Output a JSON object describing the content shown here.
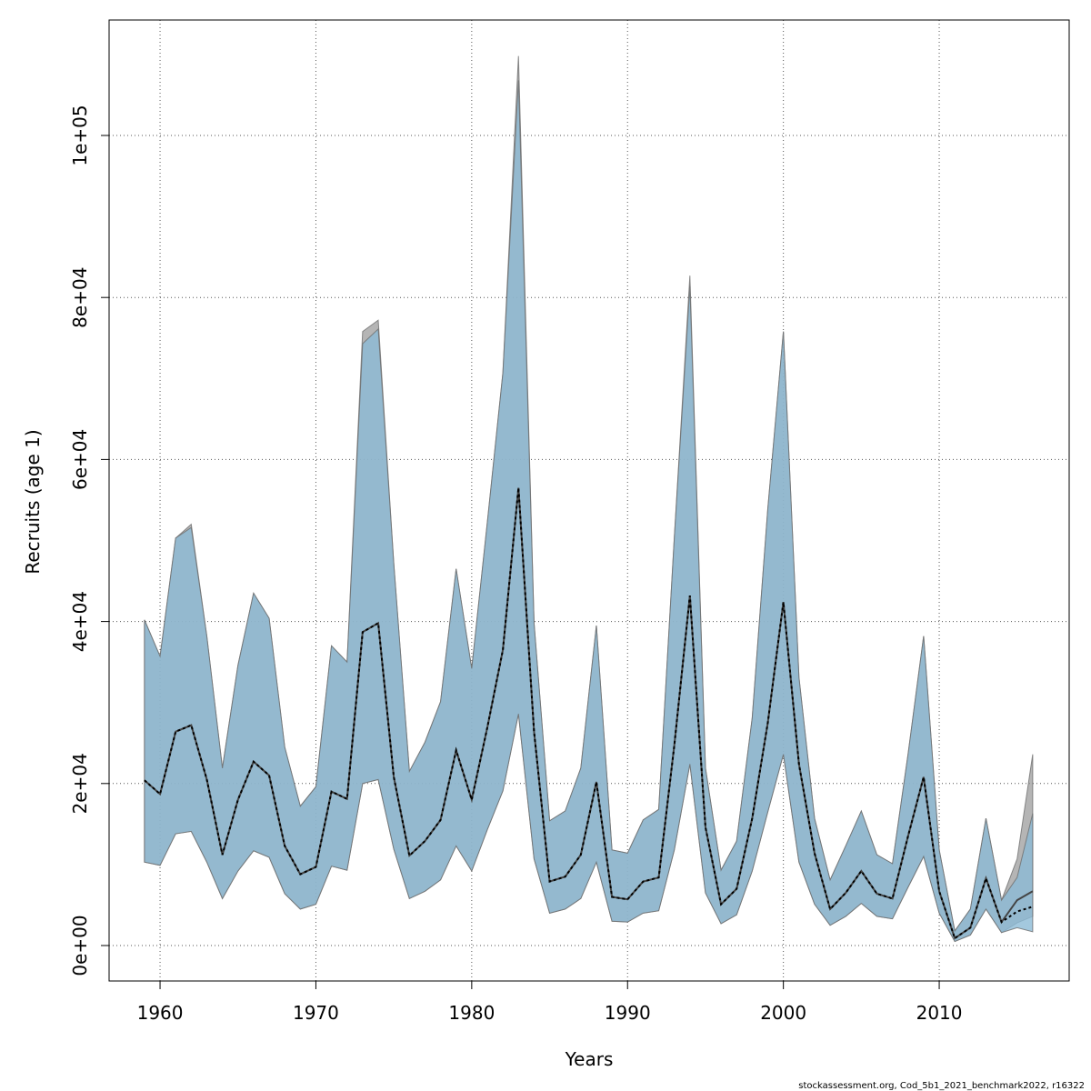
{
  "chart_data": {
    "type": "band_line",
    "x_label": "Years",
    "y_label": "Recruits (age 1)",
    "footer": "stockassessment.org, Cod_5b1_2021_benchmark2022, r16322",
    "x": [
      1959,
      1960,
      1961,
      1962,
      1963,
      1964,
      1965,
      1966,
      1967,
      1968,
      1969,
      1970,
      1971,
      1972,
      1973,
      1974,
      1975,
      1976,
      1977,
      1978,
      1979,
      1980,
      1981,
      1982,
      1983,
      1984,
      1985,
      1986,
      1987,
      1988,
      1989,
      1990,
      1991,
      1992,
      1993,
      1994,
      1995,
      1996,
      1997,
      1998,
      1999,
      2000,
      2001,
      2002,
      2003,
      2004,
      2005,
      2006,
      2007,
      2008,
      2009,
      2010,
      2011,
      2012,
      2013,
      2014,
      2015,
      2016
    ],
    "bands": [
      {
        "color": "rgba(150,150,150,0.7)",
        "upper": [
          40200,
          35700,
          50300,
          52000,
          38200,
          21900,
          34600,
          43500,
          40400,
          24500,
          17200,
          19600,
          37000,
          35000,
          75800,
          77200,
          47100,
          21500,
          25100,
          30100,
          46500,
          34200,
          52200,
          70700,
          109800,
          39800,
          15400,
          16600,
          21900,
          39500,
          11800,
          11400,
          15500,
          16800,
          50300,
          82700,
          21900,
          9300,
          12900,
          28100,
          53900,
          75800,
          33100,
          15700,
          8100,
          12300,
          16600,
          11200,
          10100,
          23600,
          38200,
          11800,
          1800,
          4500,
          15700,
          5600,
          10700,
          23600
        ],
        "lower": [
          10300,
          9900,
          13800,
          14100,
          10300,
          5800,
          9200,
          11700,
          10900,
          6400,
          4500,
          5100,
          9800,
          9300,
          20000,
          20500,
          11900,
          5800,
          6700,
          8100,
          12300,
          9200,
          14300,
          19100,
          28600,
          10700,
          4000,
          4500,
          5800,
          10300,
          3000,
          2900,
          4000,
          4300,
          11800,
          22400,
          6500,
          2700,
          3800,
          9200,
          16500,
          23600,
          10300,
          5100,
          2500,
          3600,
          5200,
          3600,
          3300,
          7200,
          11000,
          4000,
          500,
          1300,
          4500,
          1600,
          2800,
          3600
        ]
      },
      {
        "color": "rgba(140,186,214,0.8)",
        "upper": [
          40200,
          35700,
          50300,
          51600,
          38200,
          21900,
          34600,
          43500,
          40400,
          24500,
          17200,
          19600,
          37000,
          35000,
          74300,
          76100,
          47100,
          21500,
          25100,
          30100,
          46500,
          34200,
          52200,
          70700,
          106800,
          39800,
          15400,
          16600,
          21900,
          39500,
          11800,
          11400,
          15500,
          16800,
          50300,
          81400,
          21900,
          9300,
          12900,
          28100,
          53900,
          75800,
          33100,
          15700,
          8100,
          12300,
          16600,
          11200,
          10100,
          23600,
          38200,
          11800,
          1800,
          4500,
          15700,
          5600,
          8400,
          16300
        ],
        "lower": [
          10300,
          9900,
          13800,
          14100,
          10300,
          5800,
          9200,
          11700,
          10900,
          6400,
          4500,
          5100,
          9800,
          9300,
          20000,
          20500,
          11900,
          5800,
          6700,
          8100,
          12300,
          9200,
          14300,
          19100,
          28600,
          10700,
          4000,
          4500,
          5800,
          10300,
          3000,
          2900,
          4000,
          4300,
          11800,
          22400,
          6500,
          2700,
          3800,
          9200,
          16500,
          23600,
          10300,
          5100,
          2500,
          3600,
          5200,
          3600,
          3300,
          7200,
          11000,
          4000,
          500,
          1300,
          4500,
          1600,
          2200,
          1700
        ]
      }
    ],
    "series": [
      {
        "color": "#444444",
        "dash": "none",
        "values": [
          20400,
          18700,
          26400,
          27200,
          20500,
          11200,
          18000,
          22700,
          21000,
          12300,
          8800,
          9700,
          19000,
          18100,
          38700,
          39800,
          20800,
          11100,
          12900,
          15500,
          24100,
          18000,
          26900,
          36500,
          56500,
          26400,
          7900,
          8500,
          11200,
          20200,
          6000,
          5700,
          7900,
          8400,
          24700,
          43200,
          14600,
          5100,
          7000,
          15700,
          27500,
          42400,
          22400,
          11400,
          4500,
          6500,
          9200,
          6400,
          5800,
          13500,
          20800,
          6700,
          900,
          2200,
          8300,
          2900,
          5600,
          6700
        ]
      },
      {
        "color": "#000000",
        "dash": "3,3",
        "values": [
          20400,
          18700,
          26400,
          27200,
          20500,
          11200,
          18000,
          22700,
          21000,
          12300,
          8800,
          9700,
          19000,
          18100,
          38700,
          39800,
          20800,
          11100,
          12900,
          15500,
          24100,
          18000,
          26900,
          36500,
          56500,
          26400,
          7900,
          8500,
          11200,
          20200,
          6000,
          5700,
          7900,
          8400,
          24700,
          43200,
          14600,
          5100,
          7000,
          15700,
          27500,
          42400,
          22400,
          11400,
          4500,
          6500,
          9200,
          6400,
          5800,
          13500,
          20800,
          6700,
          900,
          2200,
          8300,
          2900,
          4200,
          4800
        ]
      }
    ],
    "xlim": [
      1956.73,
      2018.34
    ],
    "ylim": [
      -4377,
      114253
    ],
    "xticks": [
      1960,
      1970,
      1980,
      1990,
      2000,
      2010
    ],
    "yticks": [
      {
        "value": 0,
        "label": "0e+00"
      },
      {
        "value": 20000,
        "label": "2e+04"
      },
      {
        "value": 40000,
        "label": "4e+04"
      },
      {
        "value": 60000,
        "label": "6e+04"
      },
      {
        "value": 80000,
        "label": "8e+04"
      },
      {
        "value": 100000,
        "label": "1e+05"
      }
    ],
    "grid": true
  }
}
